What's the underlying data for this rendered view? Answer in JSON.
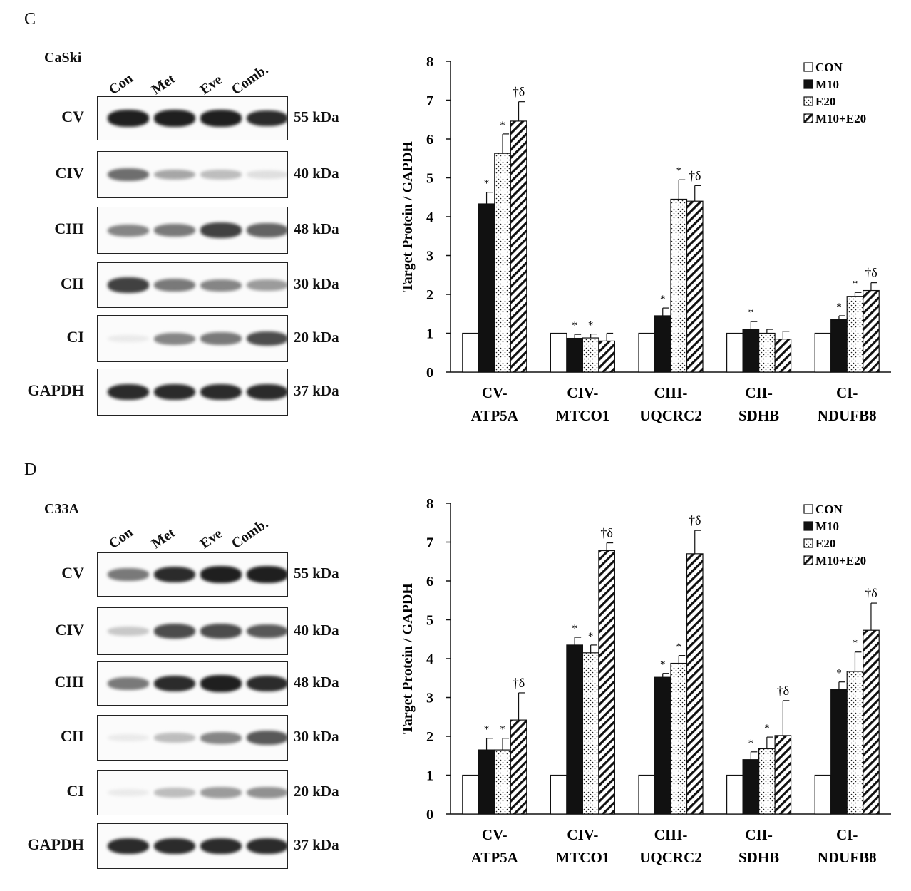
{
  "panels": [
    {
      "letter": "C",
      "cell_line": "CaSki",
      "lanes": [
        "Con",
        "Met",
        "Eve",
        "Comb."
      ],
      "blots": [
        {
          "label": "CV",
          "kda": "55 kDa",
          "intensity": [
            0.95,
            0.95,
            0.95,
            0.9
          ]
        },
        {
          "label": "CIV",
          "kda": "40 kDa",
          "intensity": [
            0.6,
            0.35,
            0.25,
            0.1
          ]
        },
        {
          "label": "CIII",
          "kda": "48 kDa",
          "intensity": [
            0.5,
            0.55,
            0.8,
            0.65
          ]
        },
        {
          "label": "CII",
          "kda": "30 kDa",
          "intensity": [
            0.8,
            0.55,
            0.5,
            0.4
          ]
        },
        {
          "label": "CI",
          "kda": "20 kDa",
          "intensity": [
            0.05,
            0.5,
            0.55,
            0.75
          ]
        },
        {
          "label": "GAPDH",
          "kda": "37 kDa",
          "intensity": [
            0.9,
            0.9,
            0.9,
            0.9
          ]
        }
      ]
    },
    {
      "letter": "D",
      "cell_line": "C33A",
      "lanes": [
        "Con",
        "Met",
        "Eve",
        "Comb."
      ],
      "blots": [
        {
          "label": "CV",
          "kda": "55 kDa",
          "intensity": [
            0.55,
            0.9,
            0.95,
            0.95
          ]
        },
        {
          "label": "CIV",
          "kda": "40 kDa",
          "intensity": [
            0.2,
            0.75,
            0.75,
            0.7
          ]
        },
        {
          "label": "CIII",
          "kda": "48 kDa",
          "intensity": [
            0.55,
            0.9,
            0.95,
            0.9
          ]
        },
        {
          "label": "CII",
          "kda": "30 kDa",
          "intensity": [
            0.05,
            0.25,
            0.5,
            0.7
          ]
        },
        {
          "label": "CI",
          "kda": "20 kDa",
          "intensity": [
            0.05,
            0.25,
            0.4,
            0.45
          ]
        },
        {
          "label": "GAPDH",
          "kda": "37 kDa",
          "intensity": [
            0.9,
            0.9,
            0.9,
            0.9
          ]
        }
      ]
    }
  ],
  "chart_data": [
    {
      "type": "bar",
      "title": "",
      "xlabel": "",
      "ylabel": "Target Protein / GAPDH",
      "ylim": [
        0,
        8
      ],
      "yticks": [
        0,
        1,
        2,
        3,
        4,
        5,
        6,
        7,
        8
      ],
      "grid": false,
      "legend_position": "top-right",
      "categories": [
        [
          "CV-",
          "ATP5A"
        ],
        [
          "CIV-",
          "MTCO1"
        ],
        [
          "CIII-",
          "UQCRC2"
        ],
        [
          "CII-",
          "SDHB"
        ],
        [
          "CI-",
          "NDUFB8"
        ]
      ],
      "series": [
        {
          "name": "CON",
          "pattern": "white",
          "values": [
            1.0,
            1.0,
            1.0,
            1.0,
            1.0
          ],
          "errors": [
            0,
            0,
            0,
            0,
            0
          ],
          "marks": [
            "",
            "",
            "",
            "",
            ""
          ]
        },
        {
          "name": "M10",
          "pattern": "black",
          "values": [
            4.33,
            0.87,
            1.45,
            1.1,
            1.35
          ],
          "errors": [
            0.3,
            0.1,
            0.2,
            0.2,
            0.1
          ],
          "marks": [
            "*",
            "*",
            "*",
            "*",
            "*"
          ]
        },
        {
          "name": "E20",
          "pattern": "dots",
          "values": [
            5.63,
            0.88,
            4.45,
            1.0,
            1.95
          ],
          "errors": [
            0.5,
            0.1,
            0.5,
            0.1,
            0.1
          ],
          "marks": [
            "*",
            "*",
            "*",
            "",
            "*"
          ]
        },
        {
          "name": "M10+E20",
          "pattern": "hatch",
          "values": [
            6.46,
            0.8,
            4.4,
            0.85,
            2.1
          ],
          "errors": [
            0.5,
            0.2,
            0.4,
            0.2,
            0.2
          ],
          "marks": [
            "†δ",
            "",
            "†δ",
            "",
            "†δ"
          ]
        }
      ]
    },
    {
      "type": "bar",
      "title": "",
      "xlabel": "",
      "ylabel": "Target Protein / GAPDH",
      "ylim": [
        0,
        8
      ],
      "yticks": [
        0,
        1,
        2,
        3,
        4,
        5,
        6,
        7,
        8
      ],
      "grid": false,
      "legend_position": "top-right",
      "categories": [
        [
          "CV-",
          "ATP5A"
        ],
        [
          "CIV-",
          "MTCO1"
        ],
        [
          "CIII-",
          "UQCRC2"
        ],
        [
          "CII-",
          "SDHB"
        ],
        [
          "CI-",
          "NDUFB8"
        ]
      ],
      "series": [
        {
          "name": "CON",
          "pattern": "white",
          "values": [
            1.0,
            1.0,
            1.0,
            1.0,
            1.0
          ],
          "errors": [
            0,
            0,
            0,
            0,
            0
          ],
          "marks": [
            "",
            "",
            "",
            "",
            ""
          ]
        },
        {
          "name": "M10",
          "pattern": "black",
          "values": [
            1.65,
            4.35,
            3.52,
            1.4,
            3.2
          ],
          "errors": [
            0.3,
            0.2,
            0.1,
            0.2,
            0.2
          ],
          "marks": [
            "*",
            "*",
            "*",
            "*",
            "*"
          ]
        },
        {
          "name": "E20",
          "pattern": "dots",
          "values": [
            1.65,
            4.15,
            3.88,
            1.68,
            3.67
          ],
          "errors": [
            0.3,
            0.2,
            0.2,
            0.3,
            0.5
          ],
          "marks": [
            "*",
            "*",
            "*",
            "*",
            "*"
          ]
        },
        {
          "name": "M10+E20",
          "pattern": "hatch",
          "values": [
            2.42,
            6.78,
            6.7,
            2.02,
            4.73
          ],
          "errors": [
            0.7,
            0.2,
            0.6,
            0.9,
            0.7
          ],
          "marks": [
            "†δ",
            "†δ",
            "†δ",
            "†δ",
            "†δ"
          ]
        }
      ]
    }
  ]
}
